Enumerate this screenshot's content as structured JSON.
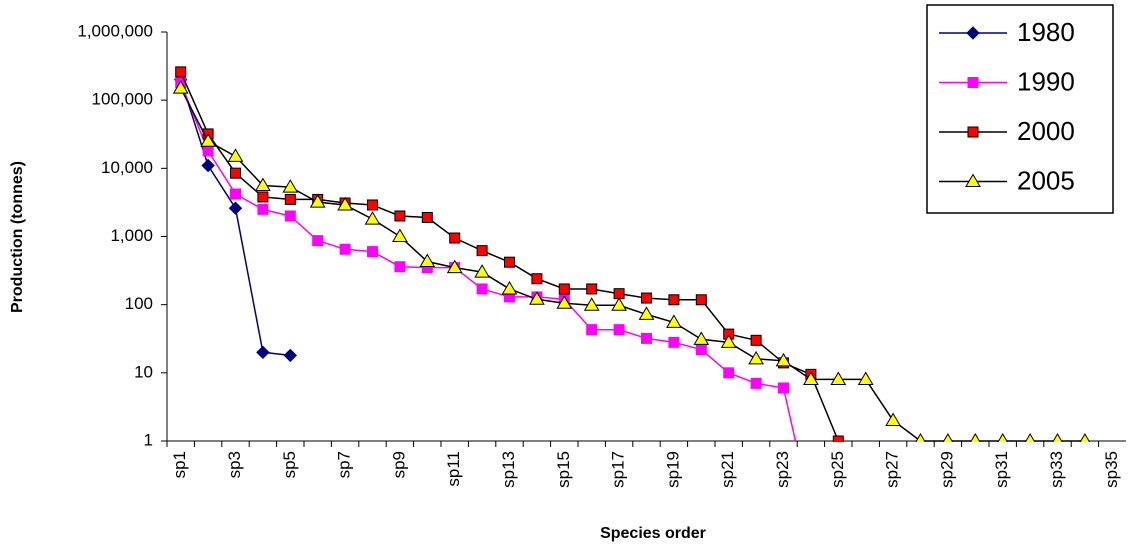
{
  "chart_data": {
    "type": "line",
    "categories": [
      "sp1",
      null,
      "sp3",
      null,
      "sp5",
      null,
      "sp7",
      null,
      "sp9",
      null,
      "sp11",
      null,
      "sp13",
      null,
      "sp15",
      null,
      "sp17",
      null,
      "sp19",
      null,
      "sp21",
      null,
      "sp23",
      null,
      "sp25",
      null,
      "sp27",
      null,
      "sp29",
      null,
      "sp31",
      null,
      "sp33",
      null,
      "sp35"
    ],
    "series": [
      {
        "name": "1980",
        "color": "#000080",
        "marker": "diamond",
        "marker_color": "#000080",
        "values": [
          200000,
          11000,
          2600,
          20,
          18,
          null,
          null,
          null,
          null,
          null,
          null,
          null,
          null,
          null,
          null,
          null,
          null,
          null,
          null,
          null,
          null,
          null,
          null,
          null,
          null,
          null,
          null,
          null,
          null,
          null,
          null,
          null,
          null,
          null,
          null
        ]
      },
      {
        "name": "1990",
        "color": "#ff00ff",
        "marker": "square",
        "marker_color": "#ff00ff",
        "values": [
          180000,
          18000,
          4200,
          2500,
          2000,
          870,
          650,
          600,
          360,
          350,
          350,
          170,
          130,
          130,
          120,
          43,
          43,
          32,
          28,
          22,
          10,
          7,
          6,
          0.1,
          null,
          null,
          null,
          null,
          null,
          null,
          null,
          null,
          null,
          null,
          null
        ]
      },
      {
        "name": "2000",
        "color": "#000000",
        "marker": "square",
        "marker_color": "#ff0000",
        "values": [
          260000,
          32000,
          8500,
          3800,
          3500,
          3500,
          3100,
          2900,
          2000,
          1900,
          950,
          620,
          420,
          240,
          170,
          170,
          145,
          125,
          118,
          118,
          37,
          30,
          14,
          9.5,
          1,
          null,
          null,
          null,
          null,
          null,
          null,
          null,
          null,
          null,
          null
        ]
      },
      {
        "name": "2005",
        "color": "#000000",
        "marker": "triangle",
        "marker_color": "#ffff00",
        "values": [
          150000,
          25000,
          15000,
          5600,
          5300,
          3200,
          2900,
          1800,
          1000,
          430,
          350,
          300,
          170,
          120,
          105,
          98,
          98,
          72,
          55,
          31,
          28,
          16,
          15,
          8,
          8,
          8,
          2,
          1,
          1,
          1,
          1,
          1,
          1,
          1,
          null
        ]
      }
    ],
    "ylim": [
      1,
      1000000
    ],
    "log_y": true,
    "yticks": [
      1,
      10,
      100,
      {
        "value": 1000,
        "label": "1,000"
      },
      {
        "value": 10000,
        "label": "10,000"
      },
      {
        "value": 100000,
        "label": "100,000"
      },
      {
        "value": 1000000,
        "label": "1,000,000"
      }
    ],
    "x_label": "Species order",
    "y_label": "Production (tonnes)",
    "legend": "top-right"
  }
}
